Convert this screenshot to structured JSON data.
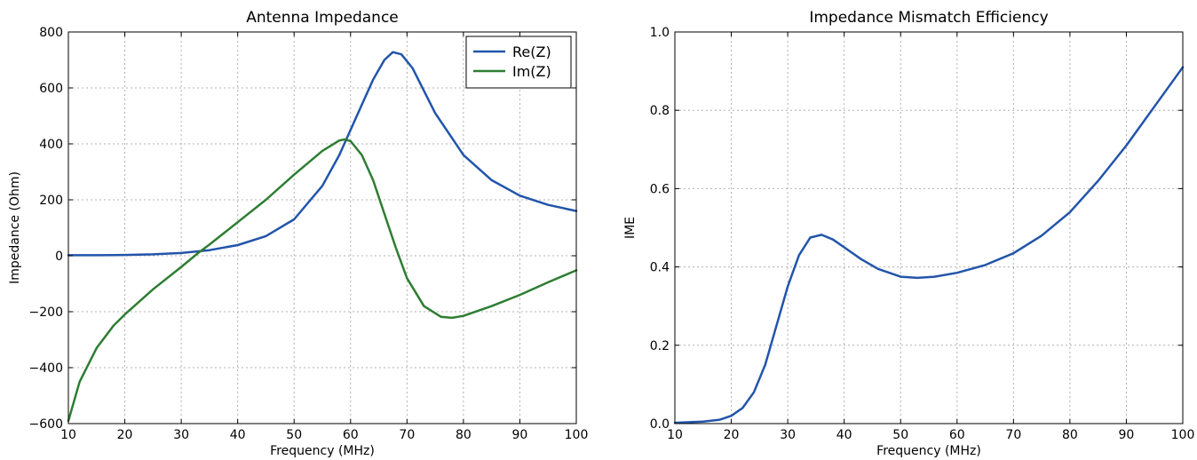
{
  "chart_data": [
    {
      "type": "line",
      "title": "Antenna Impedance",
      "xlabel": "Frequency (MHz)",
      "ylabel": "Impedance (Ohm)",
      "xlim": [
        10,
        100
      ],
      "ylim": [
        -600,
        800
      ],
      "xticks": [
        10,
        20,
        30,
        40,
        50,
        60,
        70,
        80,
        90,
        100
      ],
      "yticks": [
        -600,
        -400,
        -200,
        0,
        200,
        400,
        600,
        800
      ],
      "grid": true,
      "legend": "top-right",
      "series": [
        {
          "name": "Re(Z)",
          "color": "#2255aa",
          "x": [
            10,
            15,
            20,
            25,
            30,
            35,
            40,
            45,
            50,
            55,
            58,
            60,
            62,
            64,
            66,
            67.5,
            69,
            71,
            73,
            75,
            78,
            80,
            85,
            90,
            95,
            100
          ],
          "y": [
            2,
            2,
            3,
            5,
            10,
            20,
            38,
            70,
            130,
            250,
            360,
            450,
            540,
            630,
            700,
            728,
            720,
            670,
            590,
            510,
            420,
            360,
            270,
            215,
            182,
            160
          ]
        },
        {
          "name": "Im(Z)",
          "color": "#2e7d32",
          "x": [
            10,
            12,
            15,
            18,
            20,
            25,
            30,
            33,
            35,
            40,
            45,
            50,
            55,
            58,
            59,
            60,
            62,
            64,
            66,
            68,
            70,
            73,
            76,
            78,
            80,
            85,
            90,
            95,
            100
          ],
          "y": [
            -590,
            -450,
            -330,
            -250,
            -210,
            -120,
            -40,
            10,
            40,
            120,
            200,
            290,
            375,
            412,
            416,
            410,
            360,
            270,
            150,
            30,
            -80,
            -180,
            -218,
            -222,
            -215,
            -180,
            -140,
            -95,
            -52
          ]
        }
      ]
    },
    {
      "type": "line",
      "title": "Impedance Mismatch Efficiency",
      "xlabel": "Frequency (MHz)",
      "ylabel": "IME",
      "xlim": [
        10,
        100
      ],
      "ylim": [
        0.0,
        1.0
      ],
      "xticks": [
        10,
        20,
        30,
        40,
        50,
        60,
        70,
        80,
        90,
        100
      ],
      "yticks": [
        0.0,
        0.2,
        0.4,
        0.6,
        0.8,
        1.0
      ],
      "grid": true,
      "series": [
        {
          "color": "#2255aa",
          "x": [
            10,
            15,
            18,
            20,
            22,
            24,
            26,
            28,
            30,
            32,
            34,
            36,
            38,
            40,
            43,
            46,
            50,
            53,
            56,
            60,
            65,
            70,
            75,
            80,
            85,
            90,
            95,
            100
          ],
          "y": [
            0.002,
            0.005,
            0.01,
            0.02,
            0.04,
            0.08,
            0.15,
            0.25,
            0.35,
            0.43,
            0.475,
            0.482,
            0.47,
            0.45,
            0.42,
            0.395,
            0.375,
            0.372,
            0.375,
            0.385,
            0.405,
            0.435,
            0.48,
            0.54,
            0.62,
            0.71,
            0.81,
            0.91
          ]
        }
      ]
    }
  ]
}
